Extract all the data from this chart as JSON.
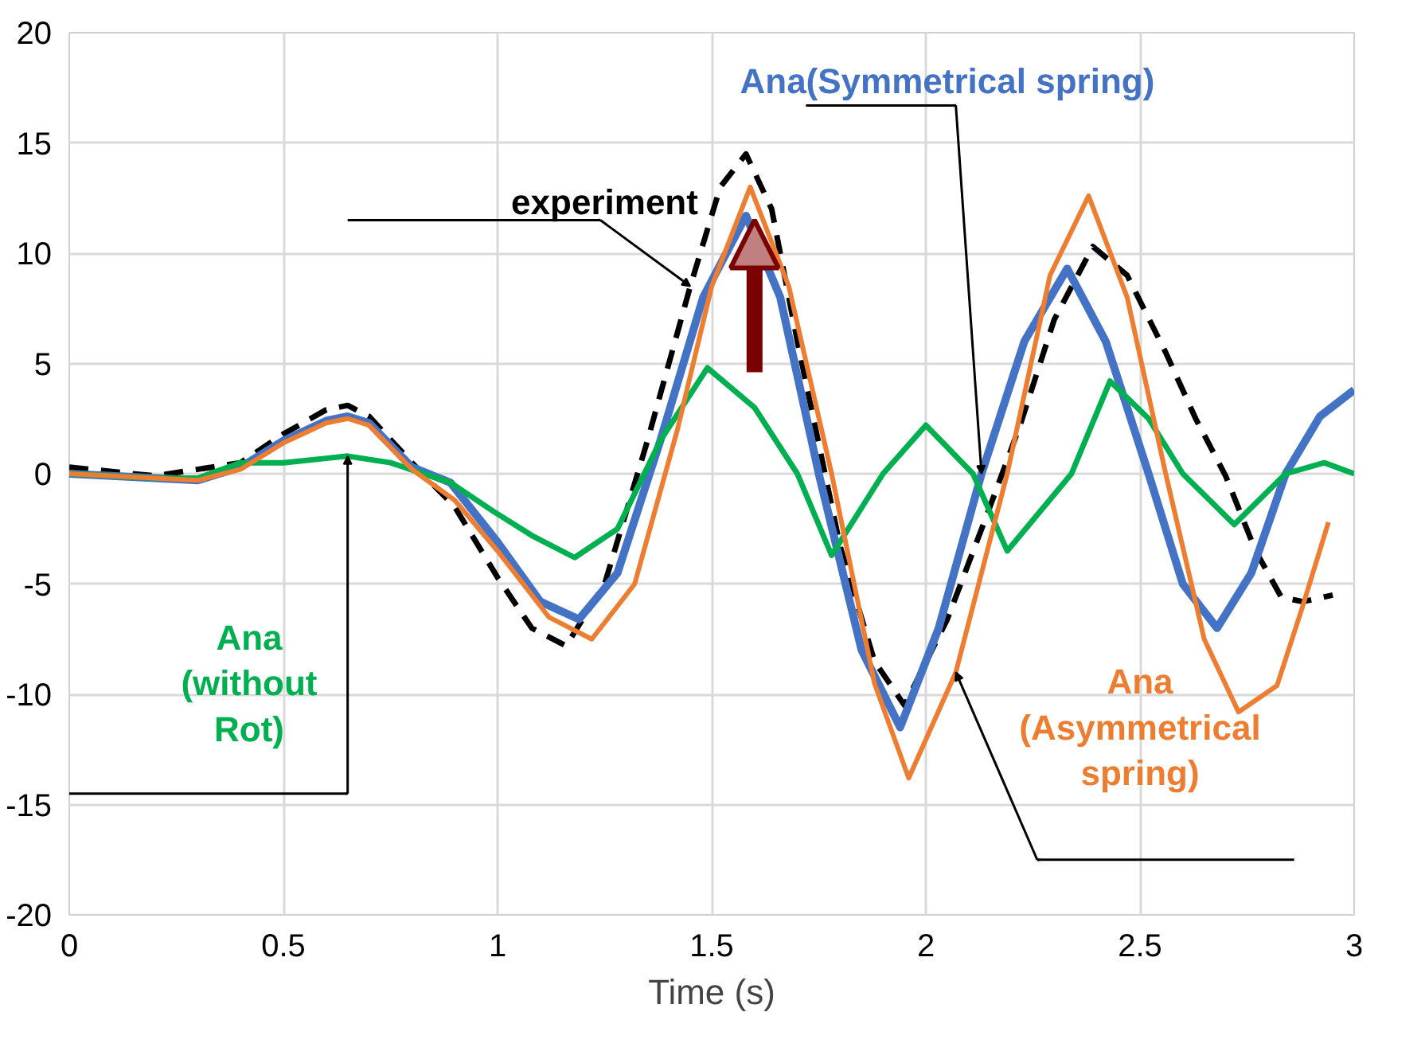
{
  "chart_data": {
    "type": "line",
    "xlabel": "Time (s)",
    "xlim": [
      0,
      3
    ],
    "ylim": [
      -20,
      20
    ],
    "xticks": [
      0,
      0.5,
      1,
      1.5,
      2,
      2.5,
      3
    ],
    "yticks": [
      -20,
      -15,
      -10,
      -5,
      0,
      5,
      10,
      15,
      20
    ],
    "grid": true,
    "legend": false,
    "series": [
      {
        "name": "experiment",
        "color": "#000000",
        "line_style": "dashed",
        "x": [
          0,
          0.1,
          0.2,
          0.4,
          0.5,
          0.6,
          0.65,
          0.7,
          0.8,
          0.9,
          1.0,
          1.08,
          1.16,
          1.25,
          1.35,
          1.45,
          1.52,
          1.58,
          1.64,
          1.7,
          1.8,
          1.88,
          1.95,
          2.05,
          2.14,
          2.22,
          2.3,
          2.39,
          2.47,
          2.56,
          2.63,
          2.7,
          2.77,
          2.83,
          2.88,
          2.95
        ],
        "values": [
          0.3,
          0.1,
          -0.1,
          0.5,
          1.8,
          2.9,
          3.1,
          2.6,
          0.5,
          -1.5,
          -4.7,
          -7,
          -7.8,
          -5,
          1.5,
          8.5,
          13,
          14.5,
          12,
          6,
          -3.3,
          -8.5,
          -10.5,
          -6.6,
          -2,
          2.2,
          7,
          10.3,
          9,
          5.5,
          2.5,
          -0.1,
          -3.5,
          -5.6,
          -5.8,
          -5.5
        ]
      },
      {
        "name": "Ana(Symmetrical spring)",
        "color": "#4472c4",
        "x": [
          0,
          0.1,
          0.2,
          0.3,
          0.4,
          0.5,
          0.6,
          0.65,
          0.7,
          0.8,
          0.89,
          1.0,
          1.1,
          1.19,
          1.28,
          1.38,
          1.48,
          1.58,
          1.66,
          1.75,
          1.85,
          1.94,
          2.03,
          2.13,
          2.23,
          2.33,
          2.42,
          2.52,
          2.6,
          2.68,
          2.76,
          2.84,
          2.92,
          3.0
        ],
        "values": [
          0,
          -0.1,
          -0.2,
          -0.3,
          0.3,
          1.5,
          2.4,
          2.6,
          2.3,
          0.3,
          -0.4,
          -3.1,
          -5.8,
          -6.6,
          -4.5,
          1.5,
          8,
          11.7,
          8,
          0,
          -8,
          -11.5,
          -7,
          0,
          6,
          9.3,
          6,
          0,
          -5,
          -7,
          -4.5,
          0,
          2.6,
          3.8
        ]
      },
      {
        "name": "Ana\n(without\nRot)",
        "color": "#00b050",
        "x": [
          0,
          0.1,
          0.2,
          0.3,
          0.4,
          0.5,
          0.6,
          0.65,
          0.75,
          0.89,
          0.99,
          1.08,
          1.18,
          1.28,
          1.38,
          1.49,
          1.6,
          1.7,
          1.78,
          1.9,
          2.0,
          2.11,
          2.19,
          2.34,
          2.43,
          2.52,
          2.6,
          2.72,
          2.84,
          2.93,
          3.0
        ],
        "values": [
          0,
          -0.1,
          -0.2,
          -0.2,
          0.5,
          0.5,
          0.7,
          0.8,
          0.5,
          -0.4,
          -1.7,
          -2.8,
          -3.8,
          -2.5,
          1.5,
          4.8,
          3,
          0,
          -3.7,
          0,
          2.2,
          0,
          -3.5,
          0,
          4.2,
          2.5,
          0,
          -2.3,
          0,
          0.5,
          0
        ]
      },
      {
        "name": "Ana\n(Asymmetrical\nspring)",
        "color": "#ed7d31",
        "x": [
          0,
          0.1,
          0.2,
          0.3,
          0.4,
          0.5,
          0.6,
          0.65,
          0.7,
          0.8,
          0.9,
          1.0,
          1.12,
          1.22,
          1.32,
          1.42,
          1.5,
          1.59,
          1.68,
          1.78,
          1.88,
          1.96,
          2.07,
          2.19,
          2.29,
          2.38,
          2.47,
          2.56,
          2.65,
          2.73,
          2.82,
          2.88,
          2.94
        ],
        "values": [
          0,
          -0.1,
          -0.2,
          -0.3,
          0.2,
          1.4,
          2.3,
          2.5,
          2.2,
          0.2,
          -1.2,
          -3.5,
          -6.5,
          -7.5,
          -5,
          2,
          8.5,
          13,
          8.5,
          0,
          -9.5,
          -13.8,
          -9,
          0,
          9,
          12.6,
          8,
          0,
          -7.5,
          -10.8,
          -9.6,
          -6,
          -2.2
        ]
      }
    ]
  }
}
